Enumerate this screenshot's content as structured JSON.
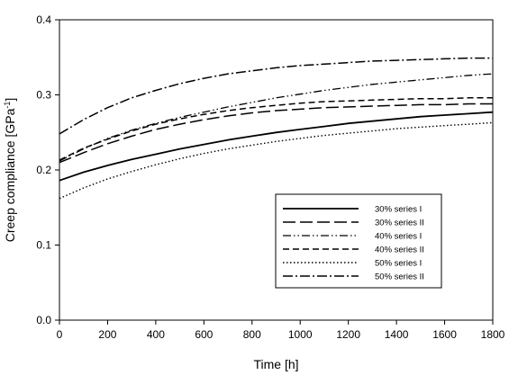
{
  "chart_data": {
    "type": "line",
    "xlabel": "Time [h]",
    "ylabel": "Creep compliance [GPa",
    "ylabel_sup": "-1",
    "ylabel_close": "]",
    "xlim": [
      0,
      1800
    ],
    "ylim": [
      0.0,
      0.4
    ],
    "x_ticks": [
      0,
      200,
      400,
      600,
      800,
      1000,
      1200,
      1400,
      1600,
      1800
    ],
    "y_ticks": [
      0.0,
      0.1,
      0.2,
      0.3,
      0.4
    ],
    "x_tick_labels": [
      "0",
      "200",
      "400",
      "600",
      "800",
      "1000",
      "1200",
      "1400",
      "1600",
      "1800"
    ],
    "y_tick_labels": [
      "0.0",
      "0.1",
      "0.2",
      "0.3",
      "0.4"
    ],
    "grid": false,
    "legend_position": "lower-right",
    "x": [
      0,
      100,
      200,
      300,
      400,
      500,
      600,
      700,
      800,
      900,
      1000,
      1100,
      1200,
      1300,
      1400,
      1500,
      1600,
      1700,
      1800
    ],
    "series": [
      {
        "name": "30% series I",
        "dash": "solid",
        "values": [
          0.186,
          0.197,
          0.206,
          0.214,
          0.221,
          0.228,
          0.234,
          0.24,
          0.245,
          0.25,
          0.254,
          0.258,
          0.262,
          0.265,
          0.268,
          0.271,
          0.273,
          0.275,
          0.277
        ]
      },
      {
        "name": "30% series II",
        "dash": "long-dash",
        "values": [
          0.21,
          0.223,
          0.235,
          0.245,
          0.254,
          0.261,
          0.267,
          0.272,
          0.276,
          0.279,
          0.281,
          0.283,
          0.284,
          0.285,
          0.286,
          0.287,
          0.287,
          0.288,
          0.288
        ]
      },
      {
        "name": "40% series I",
        "dash": "dash-dot-dot",
        "values": [
          0.212,
          0.228,
          0.242,
          0.253,
          0.262,
          0.27,
          0.277,
          0.284,
          0.29,
          0.296,
          0.301,
          0.306,
          0.31,
          0.314,
          0.317,
          0.32,
          0.323,
          0.326,
          0.328
        ]
      },
      {
        "name": "40% series II",
        "dash": "short-dash",
        "values": [
          0.213,
          0.229,
          0.241,
          0.252,
          0.261,
          0.268,
          0.274,
          0.279,
          0.283,
          0.286,
          0.289,
          0.291,
          0.292,
          0.293,
          0.294,
          0.295,
          0.295,
          0.296,
          0.296
        ]
      },
      {
        "name": "50% series I",
        "dash": "dotted",
        "values": [
          0.162,
          0.176,
          0.188,
          0.198,
          0.207,
          0.215,
          0.222,
          0.228,
          0.233,
          0.238,
          0.242,
          0.246,
          0.249,
          0.252,
          0.255,
          0.257,
          0.259,
          0.261,
          0.263
        ]
      },
      {
        "name": "50% series II",
        "dash": "dash-dot",
        "values": [
          0.248,
          0.267,
          0.283,
          0.296,
          0.306,
          0.315,
          0.322,
          0.328,
          0.332,
          0.336,
          0.339,
          0.341,
          0.343,
          0.345,
          0.346,
          0.347,
          0.348,
          0.349,
          0.349
        ]
      }
    ]
  },
  "legend": {
    "labels": [
      "30% series I",
      "30% series II",
      "40% series I",
      "40% series II",
      "50% series I",
      "50% series II"
    ]
  }
}
